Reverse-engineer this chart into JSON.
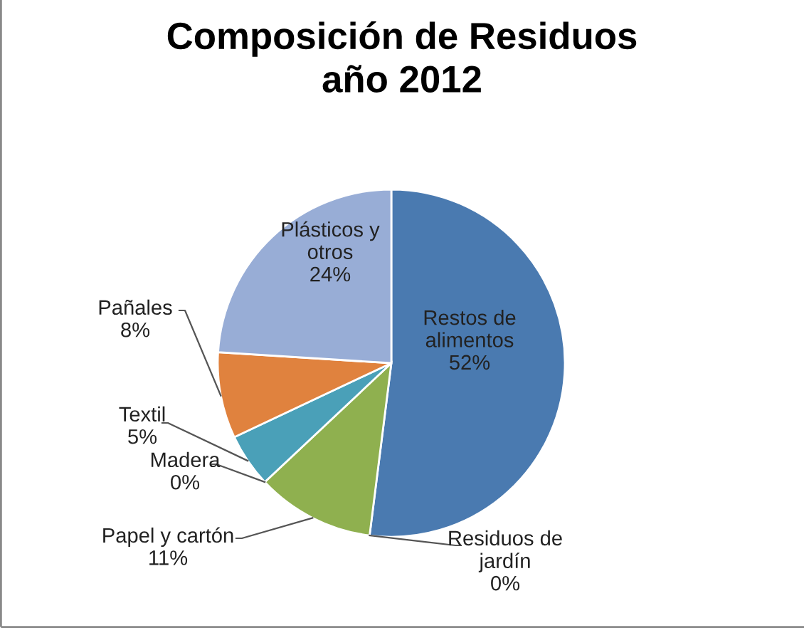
{
  "chart_data": {
    "type": "pie",
    "title": "Composición de Residuos\naño 2012",
    "categories": [
      "Restos de\nalimentos",
      "Residuos de\njardín",
      "Papel y cartón",
      "Madera",
      "Textil",
      "Pañales",
      "Plásticos y\notros"
    ],
    "values": [
      52,
      0,
      11,
      0,
      5,
      8,
      24
    ],
    "colors": [
      "#4a7ab0",
      "#c0504d",
      "#8fb04f",
      "#7f64a0",
      "#4aa0b8",
      "#e0823e",
      "#98add6"
    ],
    "value_labels": [
      "52%",
      "0%",
      "11%",
      "0%",
      "5%",
      "8%",
      "24%"
    ]
  }
}
